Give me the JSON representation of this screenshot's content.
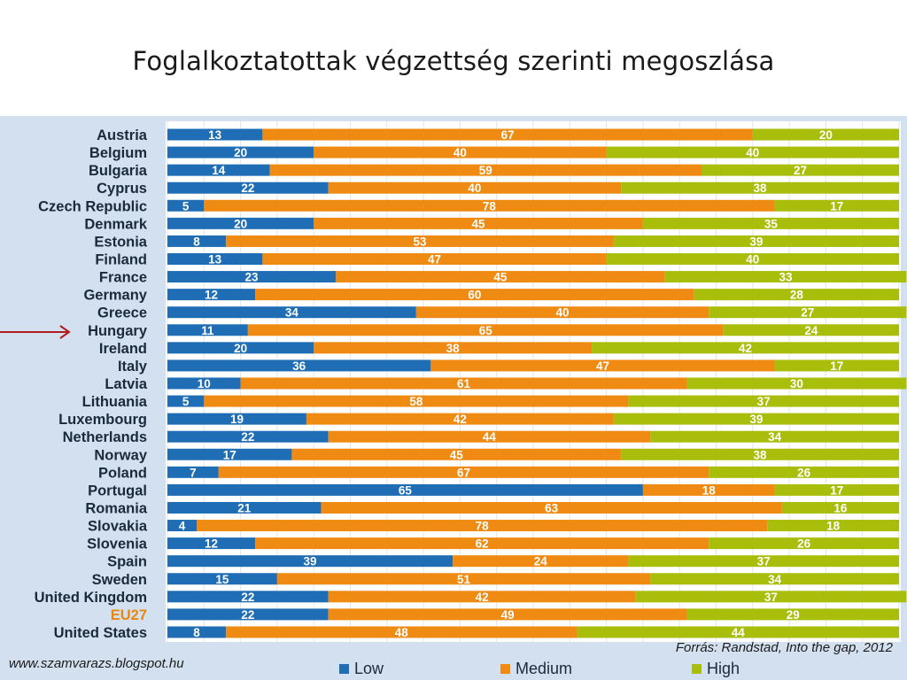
{
  "title": "Foglalkoztatottak végzettség szerinti megoszlása",
  "source": "Forrás: Randstad, Into the gap, 2012",
  "website": "www.szamvarazs.blogspot.hu",
  "highlight": {
    "category": "EU27",
    "color": "#e8870d"
  },
  "arrow_target": "Hungary",
  "colors": {
    "Low": "#1f6eb5",
    "Medium": "#ef8a12",
    "High": "#a9be0a",
    "arrow": "#b01c1c",
    "panel": "#d3e0ef"
  },
  "chart_data": {
    "type": "bar",
    "orientation": "horizontal",
    "stacked": true,
    "xlim": [
      0,
      100
    ],
    "grid": true,
    "legend_position": "bottom",
    "title": "",
    "xlabel": "",
    "ylabel": "",
    "categories": [
      "Austria",
      "Belgium",
      "Bulgaria",
      "Cyprus",
      "Czech Republic",
      "Denmark",
      "Estonia",
      "Finland",
      "France",
      "Germany",
      "Greece",
      "Hungary",
      "Ireland",
      "Italy",
      "Latvia",
      "Lithuania",
      "Luxembourg",
      "Netherlands",
      "Norway",
      "Poland",
      "Portugal",
      "Romania",
      "Slovakia",
      "Slovenia",
      "Spain",
      "Sweden",
      "United Kingdom",
      "EU27",
      "United States"
    ],
    "series": [
      {
        "name": "Low",
        "values": [
          13,
          20,
          14,
          22,
          5,
          20,
          8,
          13,
          23,
          12,
          34,
          11,
          20,
          36,
          10,
          5,
          19,
          22,
          17,
          7,
          65,
          21,
          4,
          12,
          39,
          15,
          22,
          22,
          8
        ]
      },
      {
        "name": "Medium",
        "values": [
          67,
          40,
          59,
          40,
          78,
          45,
          53,
          47,
          45,
          60,
          40,
          65,
          38,
          47,
          61,
          58,
          42,
          44,
          45,
          67,
          18,
          63,
          78,
          62,
          24,
          51,
          42,
          49,
          48
        ]
      },
      {
        "name": "High",
        "values": [
          20,
          40,
          27,
          38,
          17,
          35,
          39,
          40,
          33,
          28,
          27,
          24,
          42,
          17,
          30,
          37,
          39,
          34,
          38,
          26,
          17,
          16,
          18,
          26,
          37,
          34,
          37,
          29,
          44
        ]
      }
    ]
  }
}
